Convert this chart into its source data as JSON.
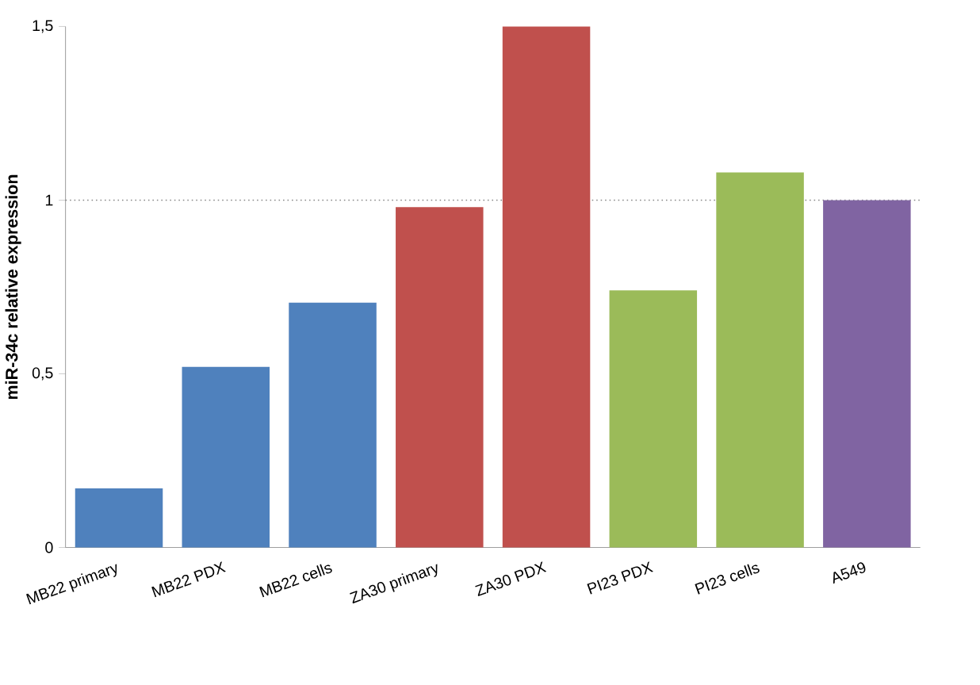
{
  "chart_data": {
    "type": "bar",
    "ylabel": "miR-34c relative expression",
    "categories": [
      "MB22 primary",
      "MB22 PDX",
      "MB22 cells",
      "ZA30 primary",
      "ZA30 PDX",
      "PI23 PDX",
      "PI23 cells",
      "A549"
    ],
    "values": [
      0.17,
      0.52,
      0.705,
      0.98,
      1.5,
      0.74,
      1.08,
      1.0
    ],
    "colors": [
      "#4f81bd",
      "#4f81bd",
      "#4f81bd",
      "#c0504d",
      "#c0504d",
      "#9bbb59",
      "#9bbb59",
      "#8064a2"
    ],
    "ylim": [
      0,
      1.5
    ],
    "yticks": [
      0,
      {
        "value": 0.5,
        "label": "0,5"
      },
      1,
      {
        "value": 1.5,
        "label": "1,5"
      }
    ],
    "ref_lines": [
      {
        "axis": "y",
        "value": 1,
        "color": "#888888",
        "line_style": "dotted"
      }
    ]
  }
}
